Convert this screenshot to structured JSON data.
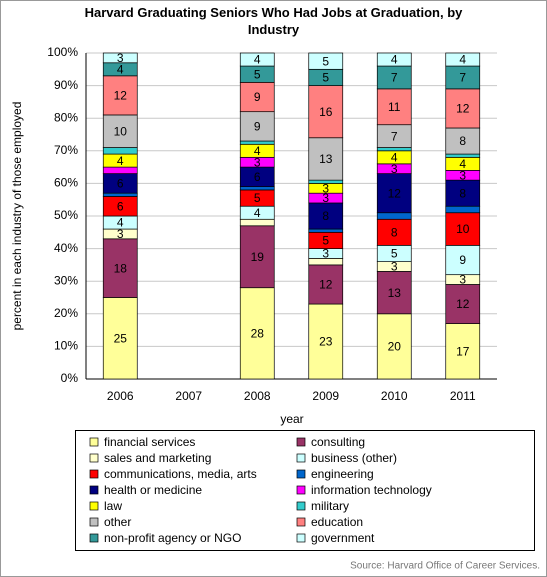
{
  "chart_data": {
    "type": "stacked_bar",
    "title": "Harvard Graduating Seniors Who Had Jobs at Graduation, by Industry",
    "xlabel": "year",
    "ylabel": "percent in each industry of those employed",
    "source": "Source: Harvard Office of Career Services.",
    "categories": [
      "2006",
      "2007",
      "2008",
      "2009",
      "2010",
      "2011"
    ],
    "ylim": [
      0,
      100
    ],
    "yticks": [
      {
        "value": 0,
        "label": "0%"
      },
      {
        "value": 10,
        "label": "10%"
      },
      {
        "value": 20,
        "label": "20%"
      },
      {
        "value": 30,
        "label": "30%"
      },
      {
        "value": 40,
        "label": "40%"
      },
      {
        "value": 50,
        "label": "50%"
      },
      {
        "value": 60,
        "label": "60%"
      },
      {
        "value": 70,
        "label": "70%"
      },
      {
        "value": 80,
        "label": "80%"
      },
      {
        "value": 90,
        "label": "90%"
      },
      {
        "value": 100,
        "label": "100%"
      }
    ],
    "grid": true,
    "series": [
      {
        "name": "financial services",
        "color": "#ffff99",
        "values": [
          25,
          null,
          28,
          23,
          20,
          17
        ]
      },
      {
        "name": "consulting",
        "color": "#993366",
        "values": [
          18,
          null,
          19,
          12,
          13,
          12
        ]
      },
      {
        "name": "sales and marketing",
        "color": "#ffffcc",
        "values": [
          3,
          null,
          2,
          2,
          3,
          3
        ]
      },
      {
        "name": "business (other)",
        "color": "#ccffff",
        "values": [
          4,
          null,
          4,
          3,
          5,
          9
        ]
      },
      {
        "name": "communications, media, arts",
        "color": "#ff0000",
        "values": [
          6,
          null,
          5,
          5,
          8,
          10
        ]
      },
      {
        "name": "engineering",
        "color": "#0066cc",
        "values": [
          1,
          null,
          1,
          1,
          2,
          2
        ]
      },
      {
        "name": "health or medicine",
        "color": "#000080",
        "values": [
          6,
          null,
          6,
          8,
          12,
          8
        ]
      },
      {
        "name": "information technology",
        "color": "#ff00ff",
        "values": [
          2,
          null,
          3,
          3,
          3,
          3
        ]
      },
      {
        "name": "law",
        "color": "#ffff00",
        "values": [
          4,
          null,
          4,
          3,
          4,
          4
        ]
      },
      {
        "name": "military",
        "color": "#33cccc",
        "values": [
          2,
          null,
          1,
          1,
          1,
          1
        ]
      },
      {
        "name": "other",
        "color": "#c0c0c0",
        "values": [
          10,
          null,
          9,
          13,
          7,
          8
        ]
      },
      {
        "name": "education",
        "color": "#ff8080",
        "values": [
          12,
          null,
          9,
          16,
          11,
          12
        ]
      },
      {
        "name": "non-profit agency or NGO",
        "color": "#339999",
        "values": [
          4,
          null,
          5,
          5,
          7,
          7
        ]
      },
      {
        "name": "government",
        "color": "#ccffff",
        "values": [
          3,
          null,
          4,
          5,
          4,
          4
        ]
      }
    ]
  }
}
